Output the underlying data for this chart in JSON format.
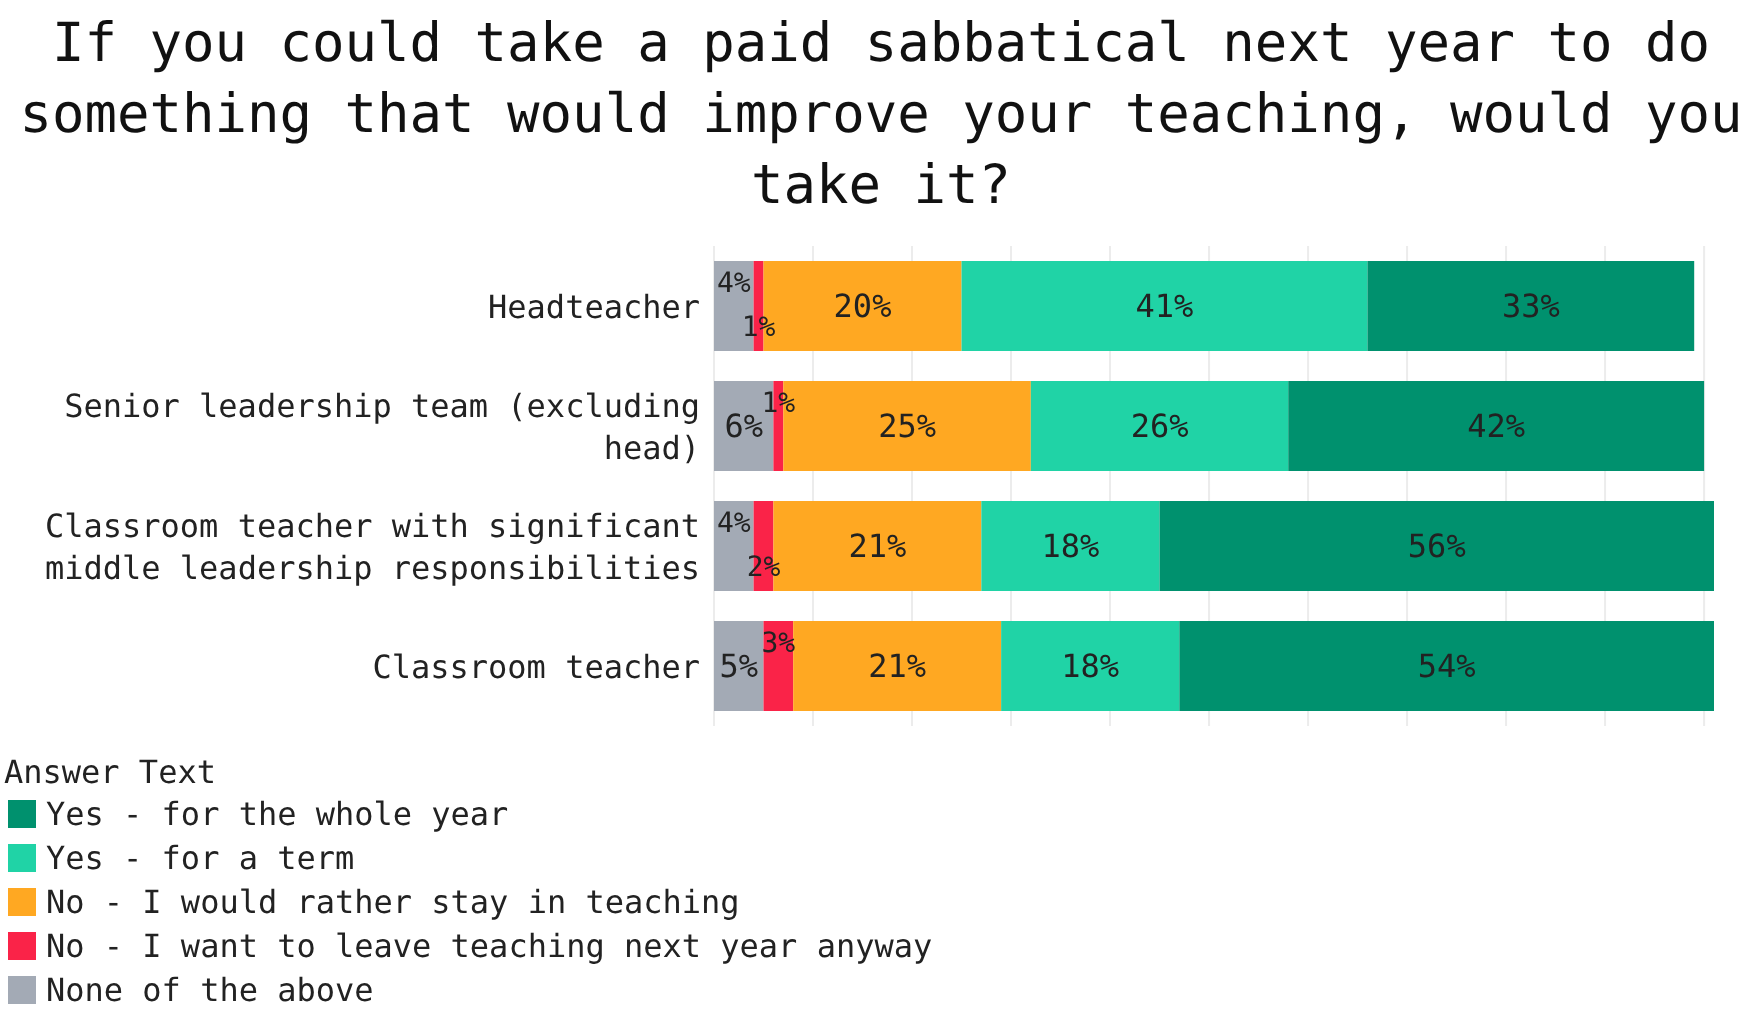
{
  "chart_data": {
    "type": "bar",
    "orientation": "horizontal",
    "stacked": true,
    "title": "If you could take a paid sabbatical next year to do something that would improve your teaching, would you take it?",
    "categories": [
      "Headteacher",
      "Senior leadership team (excluding head)",
      "Classroom teacher with significant middle leadership responsibilities",
      "Classroom teacher"
    ],
    "series": [
      {
        "name": "None of the above",
        "color": "#a3aab5",
        "values": [
          4,
          6,
          4,
          5
        ],
        "value_labels": [
          "4%",
          "6%",
          "4%",
          "5%"
        ]
      },
      {
        "name": "No - I want to leave teaching next year anyway",
        "color": "#fa2348",
        "values": [
          1,
          1,
          2,
          3
        ],
        "value_labels": [
          "1%",
          "1%",
          "2%",
          "3%"
        ]
      },
      {
        "name": "No - I would rather stay in teaching",
        "color": "#ffa822",
        "values": [
          20,
          25,
          21,
          21
        ],
        "value_labels": [
          "20%",
          "25%",
          "21%",
          "21%"
        ]
      },
      {
        "name": "Yes - for a term",
        "color": "#20d3a6",
        "values": [
          41,
          26,
          18,
          18
        ],
        "value_labels": [
          "41%",
          "26%",
          "18%",
          "18%"
        ]
      },
      {
        "name": "Yes - for the whole year",
        "color": "#00916e",
        "values": [
          33,
          42,
          56,
          54
        ],
        "value_labels": [
          "33%",
          "42%",
          "56%",
          "54%"
        ]
      }
    ],
    "legend_title": "Answer Text",
    "legend": "bottom left",
    "grid": "x",
    "tick_labels": "y"
  }
}
